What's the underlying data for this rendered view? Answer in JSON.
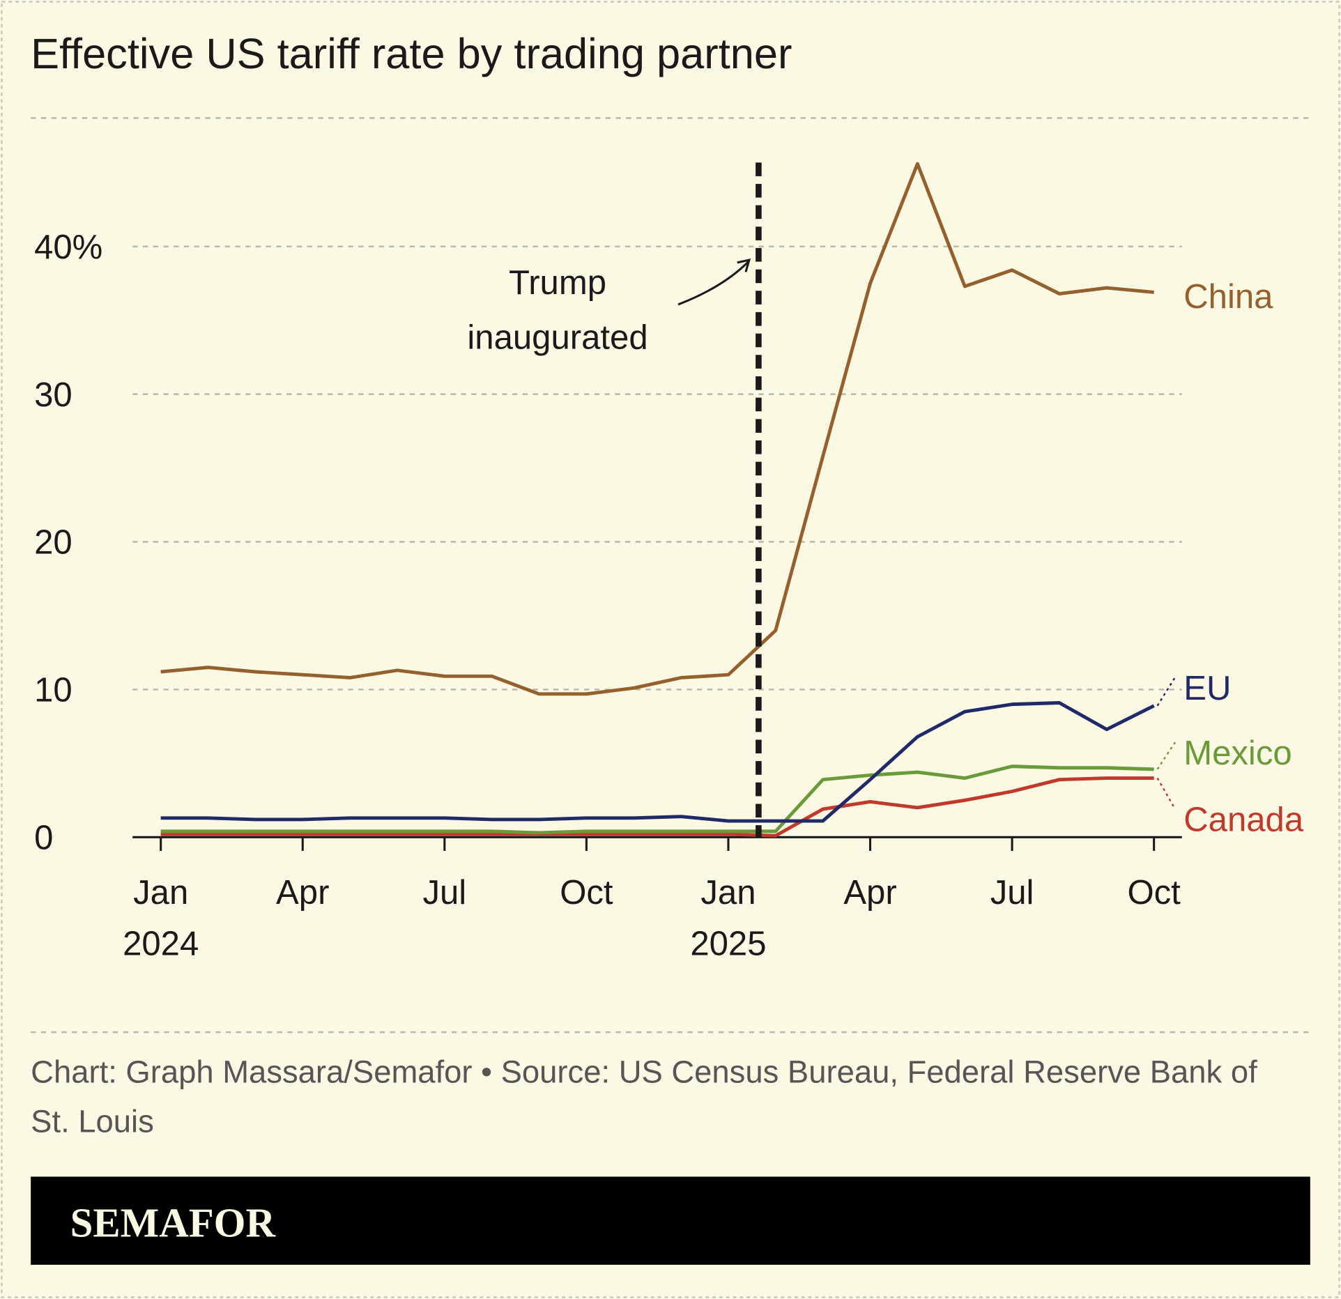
{
  "chart_data": {
    "type": "line",
    "title": "Effective US tariff rate by trading partner",
    "x": [
      "2024-01",
      "2024-02",
      "2024-03",
      "2024-04",
      "2024-05",
      "2024-06",
      "2024-07",
      "2024-08",
      "2024-09",
      "2024-10",
      "2024-11",
      "2024-12",
      "2025-01",
      "2025-02",
      "2025-03",
      "2025-04",
      "2025-05",
      "2025-06",
      "2025-07",
      "2025-08",
      "2025-09",
      "2025-10"
    ],
    "series": [
      {
        "name": "Canada",
        "color": "#c0392b",
        "values": [
          0.2,
          0.2,
          0.2,
          0.2,
          0.2,
          0.2,
          0.2,
          0.2,
          0.2,
          0.2,
          0.2,
          0.2,
          0.2,
          0.1,
          1.9,
          2.4,
          2.0,
          2.5,
          3.1,
          3.9,
          4.0,
          4.0
        ]
      },
      {
        "name": "Mexico",
        "color": "#6a9a3a",
        "values": [
          0.4,
          0.4,
          0.4,
          0.4,
          0.4,
          0.4,
          0.4,
          0.4,
          0.3,
          0.4,
          0.4,
          0.4,
          0.4,
          0.4,
          3.9,
          4.2,
          4.4,
          4.0,
          4.8,
          4.7,
          4.7,
          4.6
        ]
      },
      {
        "name": "EU",
        "color": "#1f2a66",
        "values": [
          1.3,
          1.3,
          1.2,
          1.2,
          1.3,
          1.3,
          1.3,
          1.2,
          1.2,
          1.3,
          1.3,
          1.4,
          1.1,
          1.1,
          1.1,
          3.9,
          6.8,
          8.5,
          9.0,
          9.1,
          7.3,
          8.9
        ]
      },
      {
        "name": "China",
        "color": "#94612e",
        "values": [
          11.2,
          11.5,
          11.2,
          11.0,
          10.8,
          11.3,
          10.9,
          10.9,
          9.7,
          9.7,
          10.1,
          10.8,
          11.0,
          14.0,
          25.8,
          37.5,
          45.6,
          37.3,
          38.4,
          36.8,
          37.2,
          36.9
        ]
      }
    ],
    "ylim": [
      0,
      46
    ],
    "yticks": [
      0,
      10,
      20,
      30,
      {
        "value": 40,
        "label": "40%"
      }
    ],
    "xticks": [
      {
        "value": "2024-01",
        "label": "Jan 2024"
      },
      {
        "value": "2024-04",
        "label": "Apr"
      },
      {
        "value": "2024-07",
        "label": "Jul"
      },
      {
        "value": "2024-10",
        "label": "Oct"
      },
      {
        "value": "2025-01",
        "label": "Jan 2025"
      },
      {
        "value": "2025-04",
        "label": "Apr"
      },
      {
        "value": "2025-07",
        "label": "Jul"
      },
      {
        "value": "2025-10",
        "label": "Oct"
      }
    ],
    "grid": true,
    "annotation": "Trump inaugurated"
  },
  "source": "Chart: Graph Massara/Semafor • Source: US Census Bureau, Federal Reserve Bank of St. Louis",
  "brand": "SEMAFOR"
}
